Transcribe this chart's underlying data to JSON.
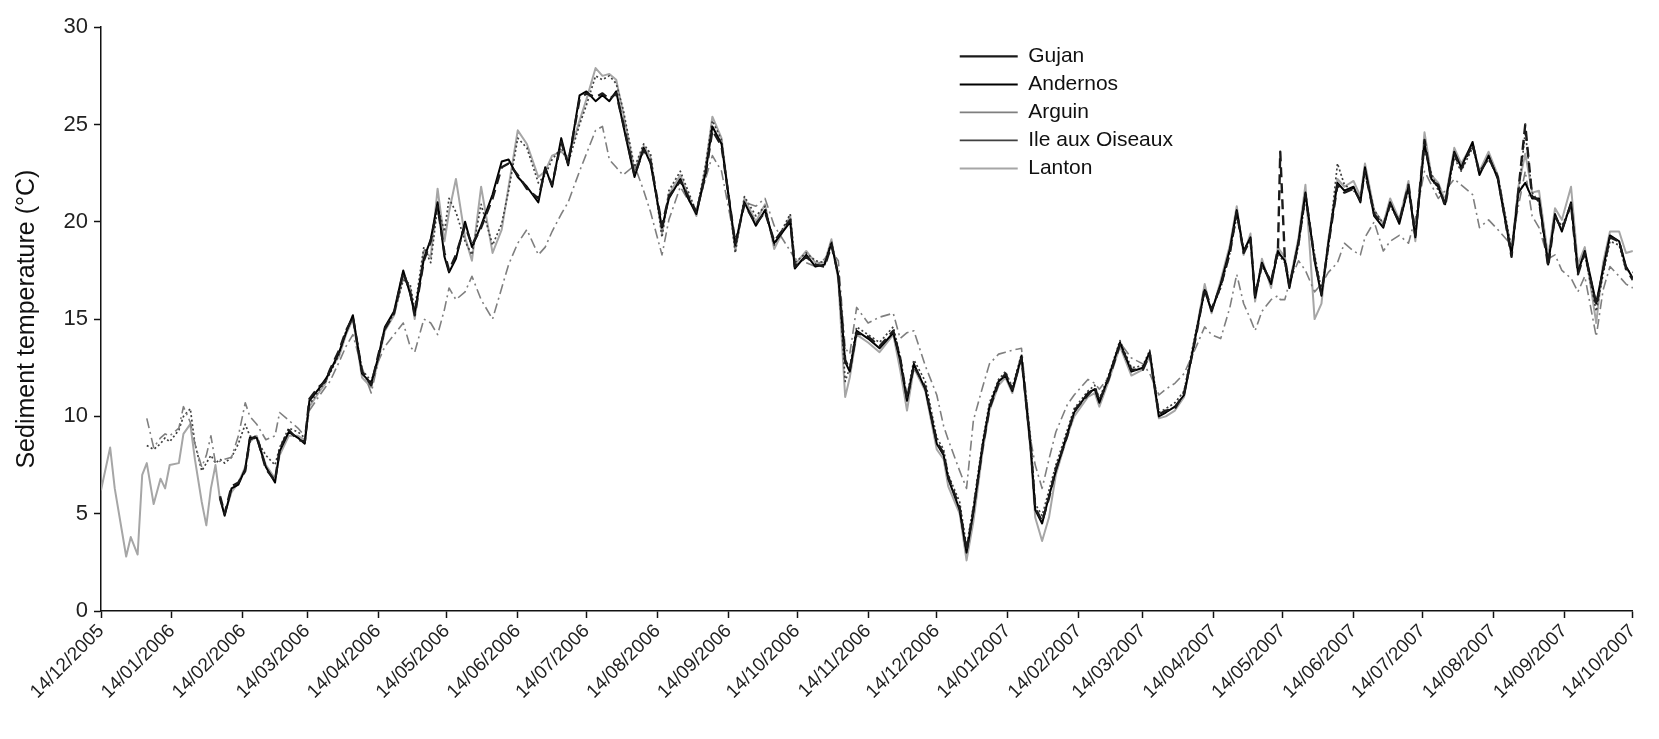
{
  "chart_data": {
    "type": "line",
    "ylabel": "Sediment temperature (°C)",
    "x": [
      "2005-12-14",
      "2005-12-18",
      "2005-12-20",
      "2005-12-25",
      "2005-12-27",
      "2005-12-30",
      "2006-01-01",
      "2006-01-03",
      "2006-01-06",
      "2006-01-09",
      "2006-01-11",
      "2006-01-13",
      "2006-01-17",
      "2006-01-19",
      "2006-01-22",
      "2006-01-24",
      "2006-01-27",
      "2006-01-29",
      "2006-01-31",
      "2006-02-02",
      "2006-02-04",
      "2006-02-06",
      "2006-02-09",
      "2006-02-12",
      "2006-02-15",
      "2006-02-17",
      "2006-02-20",
      "2006-02-24",
      "2006-02-28",
      "2006-03-02",
      "2006-03-06",
      "2006-03-10",
      "2006-03-13",
      "2006-03-15",
      "2006-03-19",
      "2006-03-22",
      "2006-03-24",
      "2006-03-28",
      "2006-03-31",
      "2006-04-03",
      "2006-04-07",
      "2006-04-11",
      "2006-04-14",
      "2006-04-17",
      "2006-04-21",
      "2006-04-25",
      "2006-04-28",
      "2006-04-30",
      "2006-05-04",
      "2006-05-07",
      "2006-05-10",
      "2006-05-13",
      "2006-05-15",
      "2006-05-18",
      "2006-05-22",
      "2006-05-25",
      "2006-05-29",
      "2006-06-03",
      "2006-06-07",
      "2006-06-10",
      "2006-06-14",
      "2006-06-18",
      "2006-06-23",
      "2006-06-26",
      "2006-06-29",
      "2006-07-03",
      "2006-07-06",
      "2006-07-11",
      "2006-07-14",
      "2006-07-18",
      "2006-07-21",
      "2006-07-24",
      "2006-07-27",
      "2006-07-30",
      "2006-08-04",
      "2006-08-08",
      "2006-08-11",
      "2006-08-16",
      "2006-08-19",
      "2006-08-24",
      "2006-08-27",
      "2006-08-31",
      "2006-09-04",
      "2006-09-07",
      "2006-09-11",
      "2006-09-17",
      "2006-09-21",
      "2006-09-26",
      "2006-09-30",
      "2006-10-04",
      "2006-10-11",
      "2006-10-13",
      "2006-10-18",
      "2006-10-22",
      "2006-10-26",
      "2006-10-29",
      "2006-11-01",
      "2006-11-04",
      "2006-11-06",
      "2006-11-09",
      "2006-11-14",
      "2006-11-19",
      "2006-11-25",
      "2006-11-28",
      "2006-12-01",
      "2006-12-04",
      "2006-12-09",
      "2006-12-14",
      "2006-12-17",
      "2006-12-19",
      "2006-12-24",
      "2006-12-27",
      "2006-12-30",
      "2007-01-03",
      "2007-01-06",
      "2007-01-10",
      "2007-01-13",
      "2007-01-16",
      "2007-01-20",
      "2007-01-24",
      "2007-01-26",
      "2007-01-29",
      "2007-02-01",
      "2007-02-04",
      "2007-02-09",
      "2007-02-12",
      "2007-02-18",
      "2007-02-21",
      "2007-02-23",
      "2007-02-27",
      "2007-03-04",
      "2007-03-09",
      "2007-03-14",
      "2007-03-17",
      "2007-03-21",
      "2007-03-24",
      "2007-03-28",
      "2007-04-01",
      "2007-04-06",
      "2007-04-10",
      "2007-04-13",
      "2007-04-17",
      "2007-04-21",
      "2007-04-24",
      "2007-04-27",
      "2007-04-30",
      "2007-05-02",
      "2007-05-05",
      "2007-05-09",
      "2007-05-12",
      "2007-05-13",
      "2007-05-15",
      "2007-05-17",
      "2007-05-21",
      "2007-05-24",
      "2007-05-28",
      "2007-05-31",
      "2007-06-03",
      "2007-06-07",
      "2007-06-10",
      "2007-06-14",
      "2007-06-17",
      "2007-06-19",
      "2007-06-23",
      "2007-06-27",
      "2007-06-30",
      "2007-07-04",
      "2007-07-08",
      "2007-07-11",
      "2007-07-15",
      "2007-07-18",
      "2007-07-21",
      "2007-07-24",
      "2007-07-28",
      "2007-07-31",
      "2007-08-05",
      "2007-08-08",
      "2007-08-12",
      "2007-08-16",
      "2007-08-22",
      "2007-08-25",
      "2007-08-28",
      "2007-08-31",
      "2007-09-03",
      "2007-09-07",
      "2007-09-10",
      "2007-09-13",
      "2007-09-17",
      "2007-09-20",
      "2007-09-23",
      "2007-09-28",
      "2007-10-01",
      "2007-10-04",
      "2007-10-08",
      "2007-10-11",
      "2007-10-14"
    ],
    "series": [
      {
        "name": "Gujan",
        "color": "#1a1a1a",
        "line_style": "dashed",
        "values": [
          null,
          null,
          null,
          null,
          null,
          null,
          null,
          null,
          null,
          null,
          null,
          null,
          null,
          null,
          null,
          null,
          null,
          null,
          null,
          null,
          5.9,
          5.0,
          6.4,
          6.6,
          7.2,
          8.8,
          9.0,
          7.3,
          6.7,
          8.3,
          9.3,
          8.8,
          8.7,
          10.9,
          11.5,
          11.8,
          12.4,
          13.4,
          14.4,
          15.1,
          12.3,
          11.6,
          13.1,
          14.5,
          15.3,
          17.4,
          16.4,
          15.2,
          18.0,
          19.0,
          20.8,
          18.4,
          17.5,
          18.3,
          19.8,
          18.8,
          19.7,
          21.2,
          22.8,
          23.0,
          22.4,
          21.7,
          21.2,
          22.7,
          21.9,
          24.1,
          23.0,
          26.3,
          26.6,
          26.4,
          26.6,
          26.3,
          26.6,
          25.1,
          22.4,
          23.7,
          23.1,
          19.8,
          21.3,
          22.1,
          21.4,
          20.5,
          22.4,
          24.7,
          23.9,
          18.9,
          20.9,
          19.9,
          20.5,
          19.0,
          20.1,
          17.7,
          18.2,
          17.8,
          17.7,
          18.8,
          17.3,
          12.9,
          12.4,
          14.3,
          14.1,
          13.6,
          14.4,
          13.0,
          10.9,
          12.6,
          11.5,
          8.7,
          8.1,
          6.9,
          5.3,
          3.1,
          5.2,
          8.4,
          10.4,
          11.7,
          12.2,
          11.4,
          13.0,
          8.5,
          5.3,
          4.6,
          5.8,
          7.3,
          9.0,
          10.3,
          11.1,
          11.5,
          10.8,
          11.9,
          13.7,
          12.4,
          12.4,
          13.2,
          10.1,
          10.3,
          10.4,
          11.2,
          14.0,
          16.6,
          15.5,
          16.7,
          18.4,
          20.5,
          18.4,
          19.1,
          16.2,
          17.8,
          16.9,
          18.6,
          23.6,
          18.1,
          16.7,
          18.9,
          21.4,
          18.1,
          16.3,
          18.8,
          21.9,
          21.5,
          21.7,
          21.1,
          22.6,
          20.4,
          19.8,
          20.9,
          20.0,
          21.9,
          19.3,
          24.2,
          22.1,
          21.9,
          20.8,
          23.5,
          22.7,
          24.0,
          22.5,
          23.3,
          22.3,
          18.2,
          21.6,
          25.0,
          21.3,
          21.1,
          17.7,
          20.3,
          19.6,
          20.9,
          17.3,
          18.4,
          15.7,
          17.5,
          19.2,
          19.0,
          17.6,
          17.0
        ]
      },
      {
        "name": "Andernos",
        "color": "#000000",
        "line_style": "solid",
        "values": [
          null,
          null,
          null,
          null,
          null,
          null,
          null,
          null,
          null,
          null,
          null,
          null,
          null,
          null,
          null,
          null,
          null,
          null,
          null,
          null,
          5.8,
          4.9,
          6.3,
          6.5,
          7.3,
          8.9,
          8.9,
          7.4,
          6.6,
          8.2,
          9.2,
          8.9,
          8.6,
          10.8,
          11.4,
          11.9,
          12.3,
          13.3,
          14.3,
          15.2,
          12.2,
          11.7,
          13.0,
          14.6,
          15.4,
          17.5,
          16.3,
          15.3,
          18.1,
          19.1,
          21.0,
          18.2,
          17.4,
          18.1,
          20.0,
          18.7,
          19.8,
          21.4,
          23.1,
          23.2,
          22.3,
          21.8,
          21.0,
          22.8,
          21.8,
          24.3,
          22.9,
          26.5,
          26.7,
          26.2,
          26.5,
          26.2,
          26.7,
          25.0,
          22.3,
          23.8,
          23.0,
          19.7,
          21.2,
          22.2,
          21.3,
          20.4,
          22.5,
          24.9,
          24.0,
          18.8,
          21.0,
          19.8,
          20.6,
          18.9,
          20.0,
          17.6,
          18.3,
          17.7,
          17.8,
          18.9,
          17.2,
          12.8,
          12.3,
          14.4,
          14.0,
          13.5,
          14.3,
          12.9,
          10.8,
          12.7,
          11.4,
          8.6,
          8.0,
          6.8,
          5.2,
          3.0,
          5.1,
          8.5,
          10.5,
          11.8,
          12.1,
          11.3,
          13.1,
          8.4,
          5.2,
          4.5,
          5.9,
          7.2,
          9.1,
          10.2,
          11.2,
          11.4,
          10.7,
          12.0,
          13.8,
          12.3,
          12.5,
          13.3,
          10.0,
          10.2,
          10.5,
          11.1,
          14.1,
          16.5,
          15.4,
          16.8,
          18.6,
          20.6,
          18.5,
          19.2,
          16.1,
          17.9,
          16.8,
          18.5,
          18.3,
          18.0,
          16.6,
          19.0,
          21.5,
          18.0,
          16.2,
          18.9,
          22.0,
          21.6,
          21.8,
          21.0,
          22.8,
          20.3,
          19.7,
          21.0,
          19.9,
          21.8,
          19.2,
          24.0,
          22.2,
          21.8,
          20.9,
          23.6,
          22.8,
          24.1,
          22.4,
          23.4,
          22.2,
          18.3,
          21.5,
          22.0,
          21.2,
          21.2,
          17.8,
          20.4,
          19.5,
          21.0,
          17.4,
          18.5,
          15.8,
          17.6,
          19.3,
          19.0,
          17.7,
          17.1
        ]
      },
      {
        "name": "Arguin",
        "color": "#7f7f7f",
        "line_style": "dashdot",
        "values": [
          null,
          null,
          null,
          null,
          null,
          null,
          null,
          9.9,
          8.4,
          8.9,
          9.1,
          9.0,
          9.4,
          10.5,
          9.7,
          8.6,
          7.4,
          8.0,
          9.0,
          7.6,
          7.7,
          7.8,
          7.9,
          9.0,
          10.7,
          10.0,
          9.6,
          8.8,
          9.0,
          10.2,
          9.8,
          9.4,
          9.0,
          10.3,
          11.0,
          11.5,
          11.8,
          12.8,
          13.6,
          14.2,
          12.5,
          11.2,
          12.8,
          13.6,
          14.2,
          14.8,
          13.6,
          13.3,
          15.0,
          14.8,
          14.2,
          15.5,
          16.6,
          16.0,
          16.4,
          17.2,
          16.0,
          15.0,
          16.6,
          17.8,
          18.9,
          19.6,
          18.3,
          18.7,
          19.5,
          20.4,
          21.0,
          22.6,
          23.5,
          24.7,
          24.9,
          23.2,
          22.8,
          22.4,
          22.9,
          21.6,
          20.5,
          18.3,
          20.1,
          21.8,
          21.2,
          20.6,
          22.2,
          23.4,
          22.6,
          18.9,
          21.0,
          20.8,
          21.2,
          19.8,
          18.5,
          18.1,
          17.9,
          17.7,
          18.1,
          18.5,
          18.0,
          13.5,
          13.2,
          15.6,
          14.8,
          15.1,
          15.3,
          14.0,
          14.3,
          14.4,
          12.6,
          11.1,
          9.5,
          8.8,
          7.2,
          6.3,
          9.8,
          11.5,
          12.7,
          13.2,
          13.3,
          13.4,
          13.5,
          8.8,
          7.5,
          6.3,
          7.8,
          9.2,
          10.6,
          11.1,
          11.9,
          11.7,
          11.4,
          12.0,
          13.8,
          13.0,
          12.7,
          12.2,
          11.1,
          11.4,
          11.7,
          12.2,
          13.5,
          14.6,
          14.2,
          14.0,
          15.6,
          17.3,
          15.8,
          15.0,
          14.4,
          15.4,
          16.0,
          16.2,
          16.0,
          16.0,
          16.9,
          18.0,
          17.5,
          16.4,
          16.8,
          17.4,
          17.9,
          18.9,
          18.5,
          18.3,
          19.2,
          20.0,
          18.5,
          19.0,
          19.3,
          18.9,
          20.2,
          22.6,
          21.9,
          21.2,
          21.6,
          22.2,
          21.9,
          21.4,
          19.7,
          20.1,
          19.6,
          18.8,
          20.8,
          22.6,
          20.3,
          19.7,
          18.1,
          18.3,
          17.5,
          17.1,
          16.4,
          17.2,
          14.1,
          16.5,
          17.7,
          17.2,
          16.8,
          16.6
        ]
      },
      {
        "name": "Ile aux Oiseaux",
        "color": "#404040",
        "line_style": "dotted",
        "values": [
          null,
          null,
          null,
          null,
          null,
          null,
          null,
          8.5,
          8.3,
          8.6,
          8.9,
          8.7,
          9.3,
          10.0,
          10.4,
          8.6,
          7.2,
          7.6,
          8.0,
          7.6,
          7.8,
          7.6,
          7.9,
          8.6,
          9.6,
          9.0,
          8.8,
          8.0,
          7.5,
          8.4,
          9.4,
          9.2,
          8.9,
          10.6,
          11.3,
          11.8,
          12.2,
          13.2,
          14.4,
          15.1,
          12.4,
          11.8,
          12.9,
          14.5,
          15.3,
          17.0,
          16.8,
          15.5,
          18.7,
          17.9,
          20.8,
          19.5,
          21.2,
          20.5,
          19.0,
          18.3,
          20.9,
          18.8,
          19.9,
          21.6,
          24.3,
          23.8,
          22.0,
          22.4,
          23.2,
          23.8,
          23.0,
          25.0,
          26.0,
          27.5,
          27.3,
          27.5,
          27.1,
          25.8,
          22.8,
          24.0,
          23.5,
          19.2,
          21.6,
          22.6,
          21.7,
          20.5,
          22.9,
          25.2,
          24.2,
          18.4,
          21.3,
          20.3,
          20.8,
          18.8,
          20.4,
          17.9,
          18.4,
          18.0,
          17.9,
          19.0,
          17.3,
          11.8,
          12.5,
          14.6,
          14.2,
          13.8,
          14.6,
          13.1,
          11.0,
          12.9,
          11.8,
          8.9,
          8.3,
          7.0,
          5.6,
          3.3,
          5.4,
          8.7,
          10.7,
          11.9,
          12.3,
          11.5,
          13.2,
          8.8,
          5.5,
          4.9,
          6.2,
          7.5,
          9.3,
          10.4,
          11.3,
          11.6,
          10.9,
          12.1,
          13.9,
          12.5,
          12.6,
          13.4,
          10.2,
          10.4,
          10.7,
          11.3,
          14.3,
          16.4,
          15.5,
          16.6,
          18.4,
          20.3,
          18.6,
          19.0,
          16.3,
          17.7,
          17.0,
          18.3,
          18.2,
          17.9,
          16.8,
          18.8,
          21.2,
          18.3,
          16.5,
          18.6,
          23.0,
          21.9,
          21.6,
          21.2,
          22.5,
          20.6,
          19.9,
          20.8,
          20.1,
          21.6,
          19.5,
          23.8,
          22.5,
          21.6,
          21.0,
          23.3,
          22.6,
          23.8,
          22.6,
          23.2,
          22.4,
          18.6,
          21.4,
          24.6,
          21.5,
          21.0,
          18.0,
          20.2,
          19.8,
          20.8,
          17.6,
          18.3,
          15.4,
          17.3,
          19.0,
          18.8,
          17.5,
          17.4
        ]
      },
      {
        "name": "Lanton",
        "color": "#a6a6a6",
        "line_style": "solid",
        "values": [
          6.2,
          8.4,
          6.3,
          2.8,
          3.8,
          2.9,
          7.0,
          7.6,
          5.5,
          6.8,
          6.3,
          7.5,
          7.6,
          9.1,
          9.6,
          7.8,
          5.6,
          4.4,
          6.3,
          7.5,
          5.7,
          5.0,
          6.1,
          6.6,
          7.4,
          8.7,
          9.0,
          7.5,
          6.8,
          8.0,
          9.0,
          9.0,
          8.8,
          10.5,
          11.2,
          11.7,
          12.4,
          13.1,
          14.2,
          15.0,
          12.0,
          11.5,
          12.8,
          14.4,
          15.2,
          17.2,
          16.6,
          15.0,
          18.5,
          18.2,
          21.7,
          19.0,
          20.5,
          22.2,
          19.2,
          18.0,
          21.8,
          18.4,
          19.6,
          21.8,
          24.7,
          24.0,
          22.3,
          22.6,
          23.4,
          23.6,
          23.3,
          25.2,
          26.3,
          27.9,
          27.5,
          27.6,
          27.3,
          25.6,
          22.6,
          23.9,
          23.3,
          19.4,
          21.4,
          22.4,
          21.5,
          20.3,
          22.8,
          25.4,
          24.3,
          18.5,
          21.2,
          20.0,
          20.9,
          18.6,
          20.3,
          17.8,
          18.5,
          17.9,
          17.9,
          19.1,
          17.0,
          11.0,
          12.0,
          14.2,
          13.8,
          13.3,
          14.2,
          12.4,
          10.3,
          12.5,
          11.3,
          8.3,
          7.8,
          6.4,
          5.0,
          2.6,
          4.6,
          8.2,
          10.3,
          11.6,
          12.0,
          11.2,
          13.0,
          8.2,
          4.8,
          3.6,
          4.8,
          7.0,
          9.0,
          10.0,
          11.0,
          11.2,
          10.5,
          11.8,
          13.6,
          12.1,
          12.4,
          13.1,
          9.9,
          10.0,
          10.3,
          11.0,
          14.2,
          16.8,
          15.3,
          17.0,
          18.8,
          20.8,
          18.3,
          19.4,
          15.9,
          18.1,
          16.6,
          18.7,
          18.5,
          18.2,
          16.8,
          19.2,
          21.9,
          15.0,
          15.8,
          19.1,
          22.2,
          21.8,
          22.1,
          21.3,
          23.0,
          20.6,
          19.9,
          21.2,
          20.1,
          22.1,
          19.0,
          24.6,
          22.4,
          22.0,
          21.1,
          23.8,
          23.0,
          24.0,
          22.6,
          23.6,
          22.4,
          18.5,
          21.8,
          23.5,
          21.5,
          21.6,
          18.2,
          20.7,
          20.1,
          21.8,
          17.8,
          18.7,
          14.8,
          17.9,
          19.5,
          19.5,
          18.4,
          18.5
        ]
      }
    ],
    "xlim": [
      "2005-12-14",
      "2007-10-14"
    ],
    "xticks": [
      {
        "value": "2005-12-14",
        "label": "14/12/2005"
      },
      {
        "value": "2006-01-14",
        "label": "14/01/2006"
      },
      {
        "value": "2006-02-14",
        "label": "14/02/2006"
      },
      {
        "value": "2006-03-14",
        "label": "14/03/2006"
      },
      {
        "value": "2006-04-14",
        "label": "14/04/2006"
      },
      {
        "value": "2006-05-14",
        "label": "14/05/2006"
      },
      {
        "value": "2006-06-14",
        "label": "14/06/2006"
      },
      {
        "value": "2006-07-14",
        "label": "14/07/2006"
      },
      {
        "value": "2006-08-14",
        "label": "14/08/2006"
      },
      {
        "value": "2006-09-14",
        "label": "14/09/2006"
      },
      {
        "value": "2006-10-14",
        "label": "14/10/2006"
      },
      {
        "value": "2006-11-14",
        "label": "14/11/2006"
      },
      {
        "value": "2006-12-14",
        "label": "14/12/2006"
      },
      {
        "value": "2007-01-14",
        "label": "14/01/2007"
      },
      {
        "value": "2007-02-14",
        "label": "14/02/2007"
      },
      {
        "value": "2007-03-14",
        "label": "14/03/2007"
      },
      {
        "value": "2007-04-14",
        "label": "14/04/2007"
      },
      {
        "value": "2007-05-14",
        "label": "14/05/2007"
      },
      {
        "value": "2007-06-14",
        "label": "14/06/2007"
      },
      {
        "value": "2007-07-14",
        "label": "14/07/2007"
      },
      {
        "value": "2007-08-14",
        "label": "14/08/2007"
      },
      {
        "value": "2007-09-14",
        "label": "14/09/2007"
      },
      {
        "value": "2007-10-14",
        "label": "14/10/2007"
      }
    ],
    "ylim": [
      0,
      30
    ],
    "yticks": [
      0,
      5,
      10,
      15,
      20,
      25,
      30
    ],
    "legend": "top right",
    "marker": "none"
  }
}
